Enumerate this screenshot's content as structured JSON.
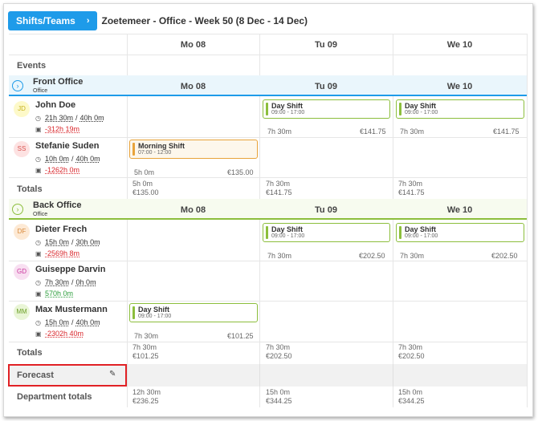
{
  "header": {
    "button_label": "Shifts/Teams",
    "button_chevron": "›",
    "week_title": "Zoetemeer - Office - Week 50 (8 Dec - 14 Dec)"
  },
  "days": [
    "Mo 08",
    "Tu 09",
    "We 10"
  ],
  "events_label": "Events",
  "departments": [
    {
      "name": "Front Office",
      "sub": "Office",
      "toggle": "›",
      "employees": [
        {
          "initials": "JD",
          "name": "John Doe",
          "worked": "21h 30m",
          "target": "40h 0m",
          "balance": "-312h 19m",
          "cells": [
            null,
            {
              "shift": "Day Shift",
              "time": "09:00 - 17:00",
              "hours": "7h 30m",
              "cost": "€141.75"
            },
            {
              "shift": "Day Shift",
              "time": "09:00 - 17:00",
              "hours": "7h 30m",
              "cost": "€141.75"
            }
          ]
        },
        {
          "initials": "SS",
          "name": "Stefanie Suden",
          "worked": "10h 0m",
          "target": "40h 0m",
          "balance": "-1262h 0m",
          "cells": [
            {
              "shift": "Morning Shift",
              "time": "07:00 - 12:00",
              "hours": "5h 0m",
              "cost": "€135.00"
            },
            null,
            null
          ]
        }
      ],
      "totals": [
        {
          "hours": "5h 0m",
          "cost": "€135.00"
        },
        {
          "hours": "7h 30m",
          "cost": "€141.75"
        },
        {
          "hours": "7h 30m",
          "cost": "€141.75"
        }
      ]
    },
    {
      "name": "Back Office",
      "sub": "Office",
      "toggle": "›",
      "employees": [
        {
          "initials": "DF",
          "name": "Dieter Frech",
          "worked": "15h 0m",
          "target": "30h 0m",
          "balance": "-2569h 8m",
          "cells": [
            null,
            {
              "shift": "Day Shift",
              "time": "09:00 - 17:00",
              "hours": "7h 30m",
              "cost": "€202.50"
            },
            {
              "shift": "Day Shift",
              "time": "09:00 - 17:00",
              "hours": "7h 30m",
              "cost": "€202.50"
            }
          ]
        },
        {
          "initials": "GD",
          "name": "Guiseppe Darvin",
          "worked": "7h 30m",
          "target": "0h 0m",
          "balance": "570h 0m",
          "cells": [
            null,
            null,
            null
          ]
        },
        {
          "initials": "MM",
          "name": "Max Mustermann",
          "worked": "15h 0m",
          "target": "40h 0m",
          "balance": "-2302h 40m",
          "cells": [
            {
              "shift": "Day Shift",
              "time": "09:00 - 17:00",
              "hours": "7h 30m",
              "cost": "€101.25"
            },
            null,
            null
          ]
        }
      ],
      "totals": [
        {
          "hours": "7h 30m",
          "cost": "€101.25"
        },
        {
          "hours": "7h 30m",
          "cost": "€202.50"
        },
        {
          "hours": "7h 30m",
          "cost": "€202.50"
        }
      ]
    }
  ],
  "totals_label": "Totals",
  "forecast_label": "Forecast",
  "department_totals_label": "Department totals",
  "department_totals": [
    {
      "hours": "12h 30m",
      "cost": "€236.25"
    },
    {
      "hours": "15h 0m",
      "cost": "€344.25"
    },
    {
      "hours": "15h 0m",
      "cost": "€344.25"
    }
  ],
  "icons": {
    "clock": "clock-icon",
    "balance": "balance-icon",
    "pencil": "pencil-icon"
  },
  "colors": {
    "accent": "#1e9be9",
    "shift_green": "#8cbe3c",
    "shift_orange": "#e8a33a",
    "negative": "#d9262b",
    "positive": "#2a9d3a",
    "highlight": "#e12125"
  }
}
